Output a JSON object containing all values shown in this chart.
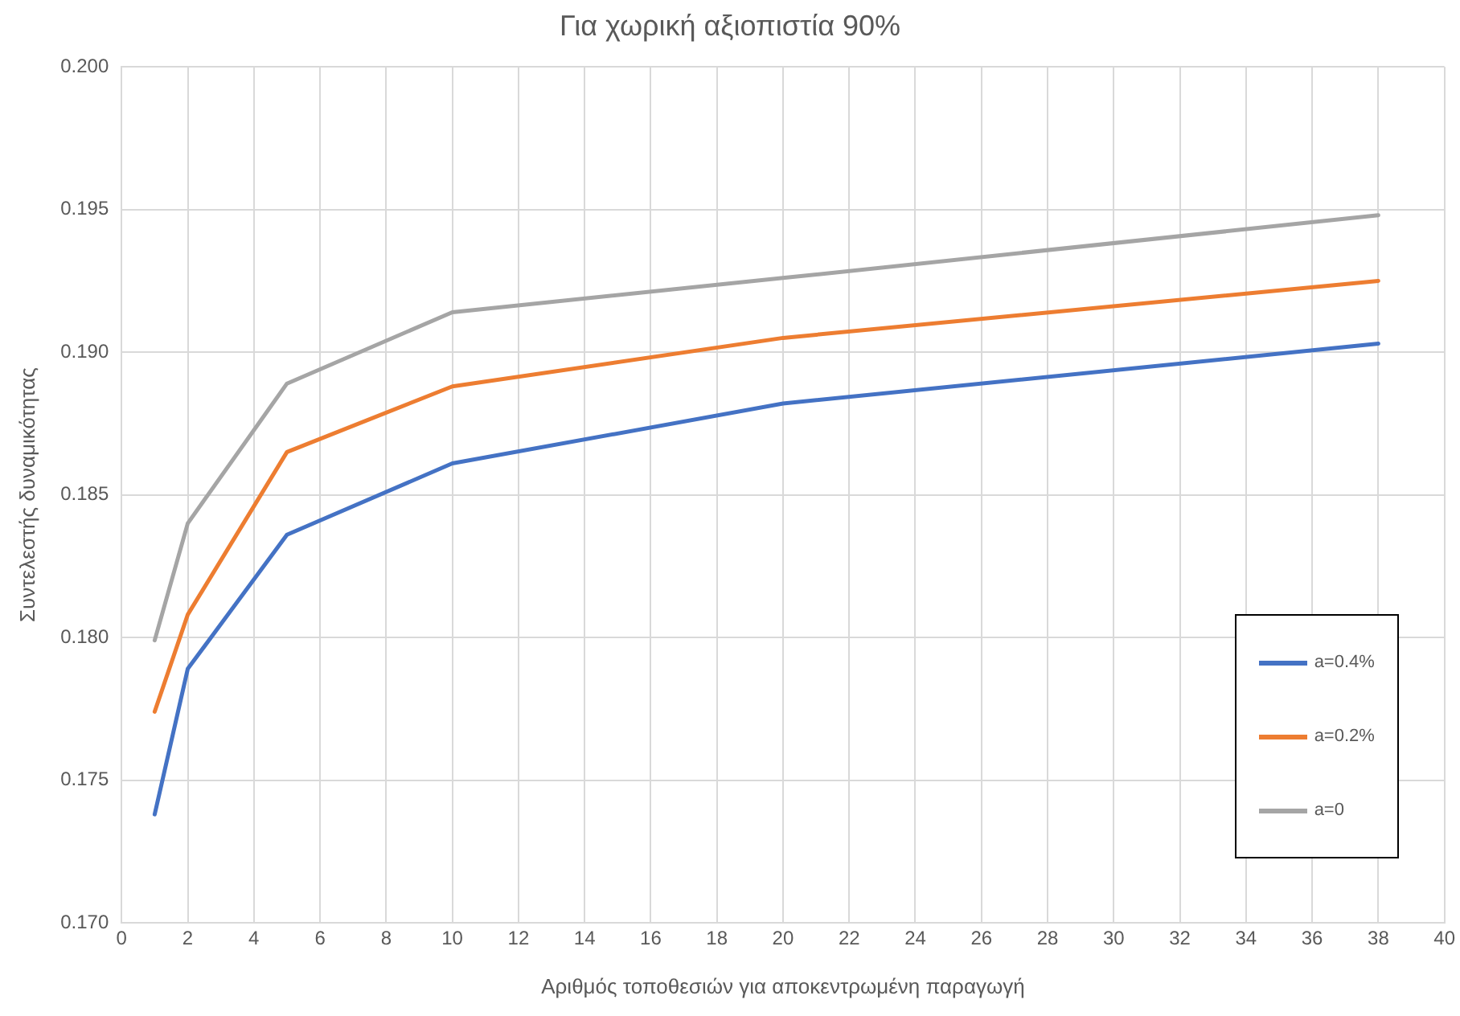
{
  "chart_data": {
    "type": "line",
    "title": "Για χωρική αξιοπιστία 90%",
    "xlabel": "Αριθμός τοποθεσιών για αποκεντρωμένη παραγωγή",
    "ylabel": "Συντελεστής δυναμικότητας",
    "x": [
      1,
      2,
      5,
      10,
      20,
      38
    ],
    "series": [
      {
        "name": "a=0.4%",
        "color": "#4472c4",
        "values": [
          0.1738,
          0.1789,
          0.1836,
          0.1861,
          0.1882,
          0.1903
        ]
      },
      {
        "name": "a=0.2%",
        "color": "#ed7d31",
        "values": [
          0.1774,
          0.1808,
          0.1865,
          0.1888,
          0.1905,
          0.1925
        ]
      },
      {
        "name": "a=0",
        "color": "#a5a5a5",
        "values": [
          0.1799,
          0.184,
          0.1889,
          0.1914,
          0.1926,
          0.1948
        ]
      }
    ],
    "xlim": [
      0,
      40
    ],
    "xticks": [
      0,
      2,
      4,
      6,
      8,
      10,
      12,
      14,
      16,
      18,
      20,
      22,
      24,
      26,
      28,
      30,
      32,
      34,
      36,
      38,
      40
    ],
    "ylim": [
      0.17,
      0.2
    ],
    "yticks": [
      {
        "value": 0.17,
        "label": "0.170"
      },
      {
        "value": 0.175,
        "label": "0.175"
      },
      {
        "value": 0.18,
        "label": "0.180"
      },
      {
        "value": 0.185,
        "label": "0.185"
      },
      {
        "value": 0.19,
        "label": "0.190"
      },
      {
        "value": 0.195,
        "label": "0.195"
      },
      {
        "value": 0.2,
        "label": "0.200"
      }
    ],
    "grid": true,
    "legend": "right",
    "marker": "none",
    "line_style": "solid"
  }
}
